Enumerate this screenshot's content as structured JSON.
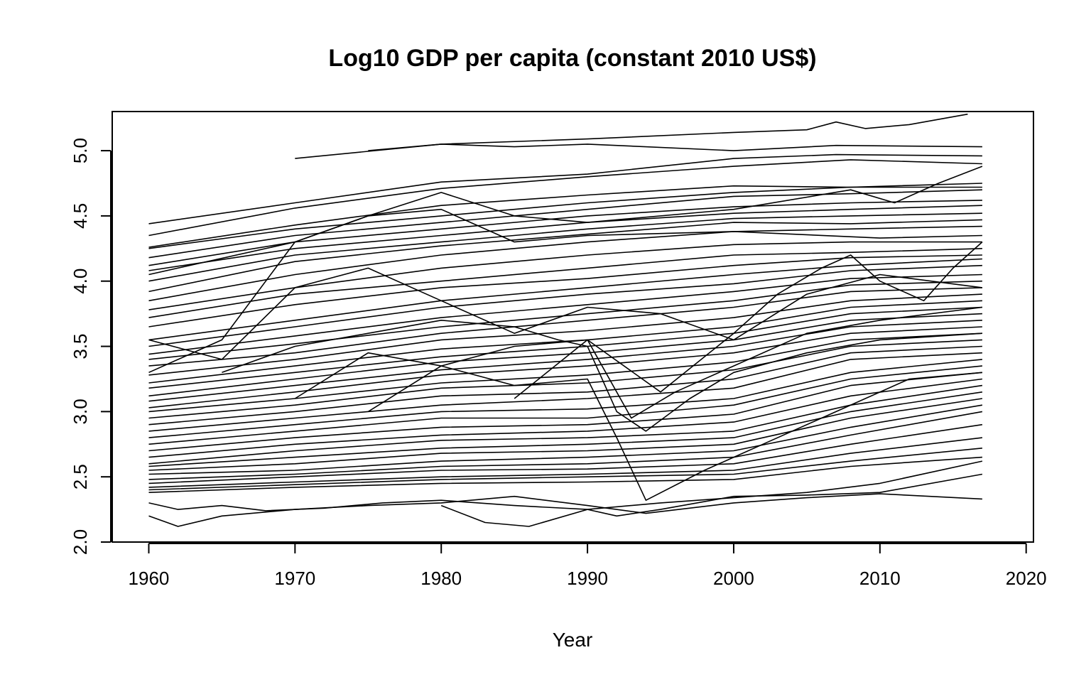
{
  "chart_data": {
    "type": "line",
    "title": "Log10 GDP per capita (constant 2010 US$)",
    "xlabel": "Year",
    "ylabel": "",
    "xlim": [
      1957.5,
      2020.5
    ],
    "ylim": [
      2.0,
      5.3
    ],
    "xticks": [
      "1960",
      "1970",
      "1980",
      "1990",
      "2000",
      "2010",
      "2020"
    ],
    "yticks": [
      "2.0",
      "2.5",
      "3.0",
      "3.5",
      "4.0",
      "4.5",
      "5.0"
    ],
    "grid": false,
    "legend": "none",
    "line_color": "#000000",
    "series": [
      {
        "x": [
          1970,
          1980,
          1990,
          2000,
          2005,
          2007,
          2009,
          2012,
          2016
        ],
        "values": [
          4.94,
          5.05,
          5.09,
          5.14,
          5.16,
          5.22,
          5.17,
          5.2,
          5.28
        ]
      },
      {
        "x": [
          1975,
          1980,
          1985,
          1990,
          2000,
          2007,
          2017
        ],
        "values": [
          5.0,
          5.05,
          5.03,
          5.05,
          5.0,
          5.04,
          5.03
        ]
      },
      {
        "x": [
          1960,
          1970,
          1980,
          1990,
          2000,
          2007,
          2017
        ],
        "values": [
          4.44,
          4.6,
          4.76,
          4.82,
          4.94,
          4.97,
          4.96
        ]
      },
      {
        "x": [
          1960,
          1970,
          1980,
          1990,
          2000,
          2008,
          2017
        ],
        "values": [
          4.35,
          4.56,
          4.71,
          4.8,
          4.88,
          4.93,
          4.9
        ]
      },
      {
        "x": [
          1960,
          1970,
          1980,
          1990,
          2000,
          2008,
          2017
        ],
        "values": [
          4.26,
          4.43,
          4.58,
          4.66,
          4.73,
          4.72,
          4.75
        ]
      },
      {
        "x": [
          1960,
          1970,
          1980,
          1990,
          2000,
          2008,
          2017
        ],
        "values": [
          4.25,
          4.4,
          4.5,
          4.6,
          4.68,
          4.72,
          4.72
        ]
      },
      {
        "x": [
          1960,
          1970,
          1980,
          1990,
          2000,
          2008,
          2017
        ],
        "values": [
          4.18,
          4.35,
          4.45,
          4.55,
          4.65,
          4.67,
          4.7
        ]
      },
      {
        "x": [
          1960,
          1970,
          1980,
          1990,
          2000,
          2008,
          2017
        ],
        "values": [
          4.12,
          4.3,
          4.4,
          4.5,
          4.57,
          4.6,
          4.62
        ]
      },
      {
        "x": [
          1960,
          1970,
          1980,
          1990,
          2000,
          2008,
          2017
        ],
        "values": [
          4.08,
          4.25,
          4.35,
          4.45,
          4.52,
          4.55,
          4.58
        ]
      },
      {
        "x": [
          1960,
          1970,
          1980,
          1990,
          2000,
          2008,
          2017
        ],
        "values": [
          4.0,
          4.2,
          4.3,
          4.4,
          4.48,
          4.5,
          4.52
        ]
      },
      {
        "x": [
          1960,
          1970,
          1980,
          1990,
          2000,
          2008,
          2017
        ],
        "values": [
          3.92,
          4.15,
          4.27,
          4.36,
          4.45,
          4.44,
          4.47
        ]
      },
      {
        "x": [
          1960,
          1970,
          1980,
          1990,
          2000,
          2008,
          2017
        ],
        "values": [
          3.85,
          4.05,
          4.2,
          4.3,
          4.38,
          4.4,
          4.42
        ]
      },
      {
        "x": [
          1960,
          1965,
          1970,
          1975,
          1980,
          1985,
          1990,
          2000,
          2010,
          2017
        ],
        "values": [
          3.3,
          3.55,
          4.3,
          4.5,
          4.55,
          4.3,
          4.35,
          4.38,
          4.33,
          4.35
        ]
      },
      {
        "x": [
          1960,
          1970,
          1980,
          1990,
          2000,
          2008,
          2017
        ],
        "values": [
          3.78,
          3.95,
          4.1,
          4.2,
          4.28,
          4.3,
          4.3
        ]
      },
      {
        "x": [
          1960,
          1970,
          1980,
          1990,
          2000,
          2008,
          2017
        ],
        "values": [
          3.72,
          3.9,
          4.0,
          4.1,
          4.2,
          4.22,
          4.25
        ]
      },
      {
        "x": [
          1960,
          1970,
          1980,
          1990,
          2000,
          2008,
          2017
        ],
        "values": [
          3.65,
          3.82,
          3.95,
          4.02,
          4.12,
          4.18,
          4.2
        ]
      },
      {
        "x": [
          1960,
          1970,
          1980,
          1990,
          2000,
          2008,
          2017
        ],
        "values": [
          3.55,
          3.7,
          3.85,
          3.95,
          4.05,
          4.12,
          4.17
        ]
      },
      {
        "x": [
          1960,
          1970,
          1980,
          1990,
          2000,
          2008,
          2017
        ],
        "values": [
          3.5,
          3.65,
          3.8,
          3.9,
          3.98,
          4.08,
          4.12
        ]
      },
      {
        "x": [
          1960,
          1970,
          1980,
          1990,
          2000,
          2008,
          2017
        ],
        "values": [
          3.44,
          3.58,
          3.72,
          3.82,
          3.92,
          4.02,
          4.05
        ]
      },
      {
        "x": [
          1960,
          1970,
          1980,
          1990,
          2000,
          2008,
          2017
        ],
        "values": [
          3.4,
          3.52,
          3.65,
          3.75,
          3.85,
          3.97,
          4.0
        ]
      },
      {
        "x": [
          1960,
          1970,
          1980,
          1990,
          2000,
          2008,
          2017
        ],
        "values": [
          3.35,
          3.45,
          3.6,
          3.7,
          3.8,
          3.92,
          3.95
        ]
      },
      {
        "x": [
          1960,
          1970,
          1980,
          1990,
          2000,
          2008,
          2017
        ],
        "values": [
          3.28,
          3.4,
          3.55,
          3.62,
          3.72,
          3.85,
          3.9
        ]
      },
      {
        "x": [
          1960,
          1970,
          1980,
          1990,
          2000,
          2008,
          2017
        ],
        "values": [
          3.22,
          3.35,
          3.48,
          3.55,
          3.65,
          3.8,
          3.85
        ]
      },
      {
        "x": [
          1960,
          1970,
          1980,
          1990,
          2000,
          2008,
          2017
        ],
        "values": [
          3.18,
          3.3,
          3.42,
          3.5,
          3.6,
          3.75,
          3.8
        ]
      },
      {
        "x": [
          1960,
          1970,
          1980,
          1990,
          2000,
          2008,
          2017
        ],
        "values": [
          3.12,
          3.25,
          3.38,
          3.45,
          3.55,
          3.7,
          3.75
        ]
      },
      {
        "x": [
          1960,
          1970,
          1980,
          1990,
          2000,
          2008,
          2017
        ],
        "values": [
          3.08,
          3.2,
          3.32,
          3.4,
          3.5,
          3.65,
          3.7
        ]
      },
      {
        "x": [
          1960,
          1970,
          1980,
          1990,
          2000,
          2008,
          2017
        ],
        "values": [
          3.03,
          3.15,
          3.28,
          3.35,
          3.45,
          3.6,
          3.65
        ]
      },
      {
        "x": [
          1960,
          1970,
          1980,
          1990,
          2000,
          2008,
          2017
        ],
        "values": [
          3.0,
          3.1,
          3.22,
          3.28,
          3.38,
          3.55,
          3.6
        ]
      },
      {
        "x": [
          1960,
          1970,
          1980,
          1990,
          2000,
          2008,
          2017
        ],
        "values": [
          2.95,
          3.05,
          3.18,
          3.22,
          3.32,
          3.5,
          3.55
        ]
      },
      {
        "x": [
          1960,
          1970,
          1980,
          1990,
          2000,
          2008,
          2017
        ],
        "values": [
          2.9,
          3.0,
          3.12,
          3.15,
          3.25,
          3.45,
          3.5
        ]
      },
      {
        "x": [
          1960,
          1970,
          1980,
          1990,
          2000,
          2008,
          2017
        ],
        "values": [
          2.85,
          2.95,
          3.05,
          3.1,
          3.18,
          3.4,
          3.45
        ]
      },
      {
        "x": [
          1960,
          1970,
          1980,
          1990,
          2000,
          2008,
          2017
        ],
        "values": [
          2.8,
          2.9,
          3.0,
          3.02,
          3.1,
          3.3,
          3.4
        ]
      },
      {
        "x": [
          1960,
          1970,
          1980,
          1990,
          2000,
          2008,
          2017
        ],
        "values": [
          2.75,
          2.85,
          2.95,
          2.95,
          3.05,
          3.25,
          3.35
        ]
      },
      {
        "x": [
          1960,
          1970,
          1980,
          1990,
          2000,
          2008,
          2017
        ],
        "values": [
          2.7,
          2.8,
          2.88,
          2.9,
          2.98,
          3.2,
          3.3
        ]
      },
      {
        "x": [
          1960,
          1970,
          1980,
          1990,
          2000,
          2008,
          2017
        ],
        "values": [
          2.65,
          2.75,
          2.82,
          2.85,
          2.92,
          3.12,
          3.25
        ]
      },
      {
        "x": [
          1960,
          1970,
          1980,
          1990,
          2000,
          2008,
          2017
        ],
        "values": [
          2.6,
          2.7,
          2.78,
          2.8,
          2.85,
          3.05,
          3.2
        ]
      },
      {
        "x": [
          1960,
          1970,
          1980,
          1990,
          2000,
          2008,
          2017
        ],
        "values": [
          2.58,
          2.65,
          2.72,
          2.75,
          2.8,
          3.0,
          3.15
        ]
      },
      {
        "x": [
          1960,
          1970,
          1980,
          1990,
          2000,
          2008,
          2017
        ],
        "values": [
          2.55,
          2.6,
          2.68,
          2.7,
          2.75,
          2.95,
          3.1
        ]
      },
      {
        "x": [
          1960,
          1970,
          1980,
          1990,
          2000,
          2008,
          2017
        ],
        "values": [
          2.52,
          2.55,
          2.62,
          2.65,
          2.7,
          2.88,
          3.05
        ]
      },
      {
        "x": [
          1960,
          1970,
          1980,
          1990,
          2000,
          2008,
          2017
        ],
        "values": [
          2.48,
          2.52,
          2.58,
          2.6,
          2.65,
          2.82,
          3.0
        ]
      },
      {
        "x": [
          1960,
          1970,
          1980,
          1990,
          2000,
          2008,
          2017
        ],
        "values": [
          2.45,
          2.5,
          2.55,
          2.56,
          2.6,
          2.75,
          2.9
        ]
      },
      {
        "x": [
          1960,
          1970,
          1980,
          1990,
          2000,
          2008,
          2017
        ],
        "values": [
          2.42,
          2.46,
          2.5,
          2.52,
          2.55,
          2.68,
          2.8
        ]
      },
      {
        "x": [
          1960,
          1970,
          1980,
          1990,
          2000,
          2008,
          2017
        ],
        "values": [
          2.4,
          2.44,
          2.48,
          2.5,
          2.52,
          2.62,
          2.72
        ]
      },
      {
        "x": [
          1960,
          1970,
          1980,
          1990,
          2000,
          2008,
          2017
        ],
        "values": [
          2.38,
          2.42,
          2.45,
          2.46,
          2.48,
          2.58,
          2.65
        ]
      },
      {
        "x": [
          1960,
          1962,
          1965,
          1968,
          1972,
          1976,
          1980,
          1985,
          1990,
          1995,
          2000,
          2005,
          2010,
          2017
        ],
        "values": [
          2.3,
          2.25,
          2.28,
          2.24,
          2.26,
          2.3,
          2.32,
          2.28,
          2.25,
          2.3,
          2.34,
          2.38,
          2.45,
          2.62
        ]
      },
      {
        "x": [
          1960,
          1962,
          1965,
          1970,
          1975,
          1980,
          1985,
          1990,
          1994,
          2000,
          2005,
          2010,
          2017
        ],
        "values": [
          2.2,
          2.12,
          2.2,
          2.25,
          2.28,
          2.3,
          2.35,
          2.28,
          2.22,
          2.3,
          2.34,
          2.37,
          2.33
        ]
      },
      {
        "x": [
          1980,
          1983,
          1986,
          1990,
          1992,
          1995,
          2000,
          2005,
          2010,
          2017
        ],
        "values": [
          2.28,
          2.15,
          2.12,
          2.25,
          2.2,
          2.25,
          2.35,
          2.36,
          2.38,
          2.52
        ]
      },
      {
        "x": [
          1960,
          1965,
          1970,
          1975,
          1980,
          1985,
          1990,
          1995,
          2000,
          2005,
          2010,
          2017
        ],
        "values": [
          3.55,
          3.4,
          3.95,
          4.1,
          3.85,
          3.6,
          3.8,
          3.75,
          3.55,
          3.9,
          4.05,
          3.95
        ]
      },
      {
        "x": [
          1965,
          1970,
          1975,
          1980,
          1985,
          1988,
          1990,
          1992,
          1994,
          1997,
          2000,
          2005,
          2010,
          2017
        ],
        "values": [
          3.3,
          3.5,
          3.6,
          3.7,
          3.65,
          3.55,
          3.5,
          3.0,
          2.85,
          3.1,
          3.3,
          3.45,
          3.55,
          3.6
        ]
      },
      {
        "x": [
          1970,
          1975,
          1980,
          1985,
          1990,
          1993,
          1996,
          2000,
          2005,
          2010,
          2017
        ],
        "values": [
          3.1,
          3.45,
          3.35,
          3.5,
          3.55,
          2.95,
          3.15,
          3.35,
          3.6,
          3.7,
          3.8
        ]
      },
      {
        "x": [
          1975,
          1980,
          1985,
          1990,
          1992,
          1994,
          1998,
          2002,
          2007,
          2012,
          2017
        ],
        "values": [
          3.0,
          3.35,
          3.2,
          3.25,
          2.8,
          2.32,
          2.55,
          2.75,
          3.0,
          3.25,
          3.3
        ]
      },
      {
        "x": [
          1985,
          1990,
          1995,
          2000,
          2003,
          2006,
          2008,
          2010,
          2013,
          2015,
          2017
        ],
        "values": [
          3.1,
          3.55,
          3.15,
          3.6,
          3.9,
          4.1,
          4.2,
          4.0,
          3.85,
          4.1,
          4.3
        ]
      },
      {
        "x": [
          1960,
          1970,
          1975,
          1980,
          1985,
          1990,
          2000,
          2008,
          2011,
          2014,
          2017
        ],
        "values": [
          4.05,
          4.3,
          4.5,
          4.68,
          4.5,
          4.45,
          4.55,
          4.7,
          4.6,
          4.75,
          4.88
        ]
      }
    ]
  }
}
